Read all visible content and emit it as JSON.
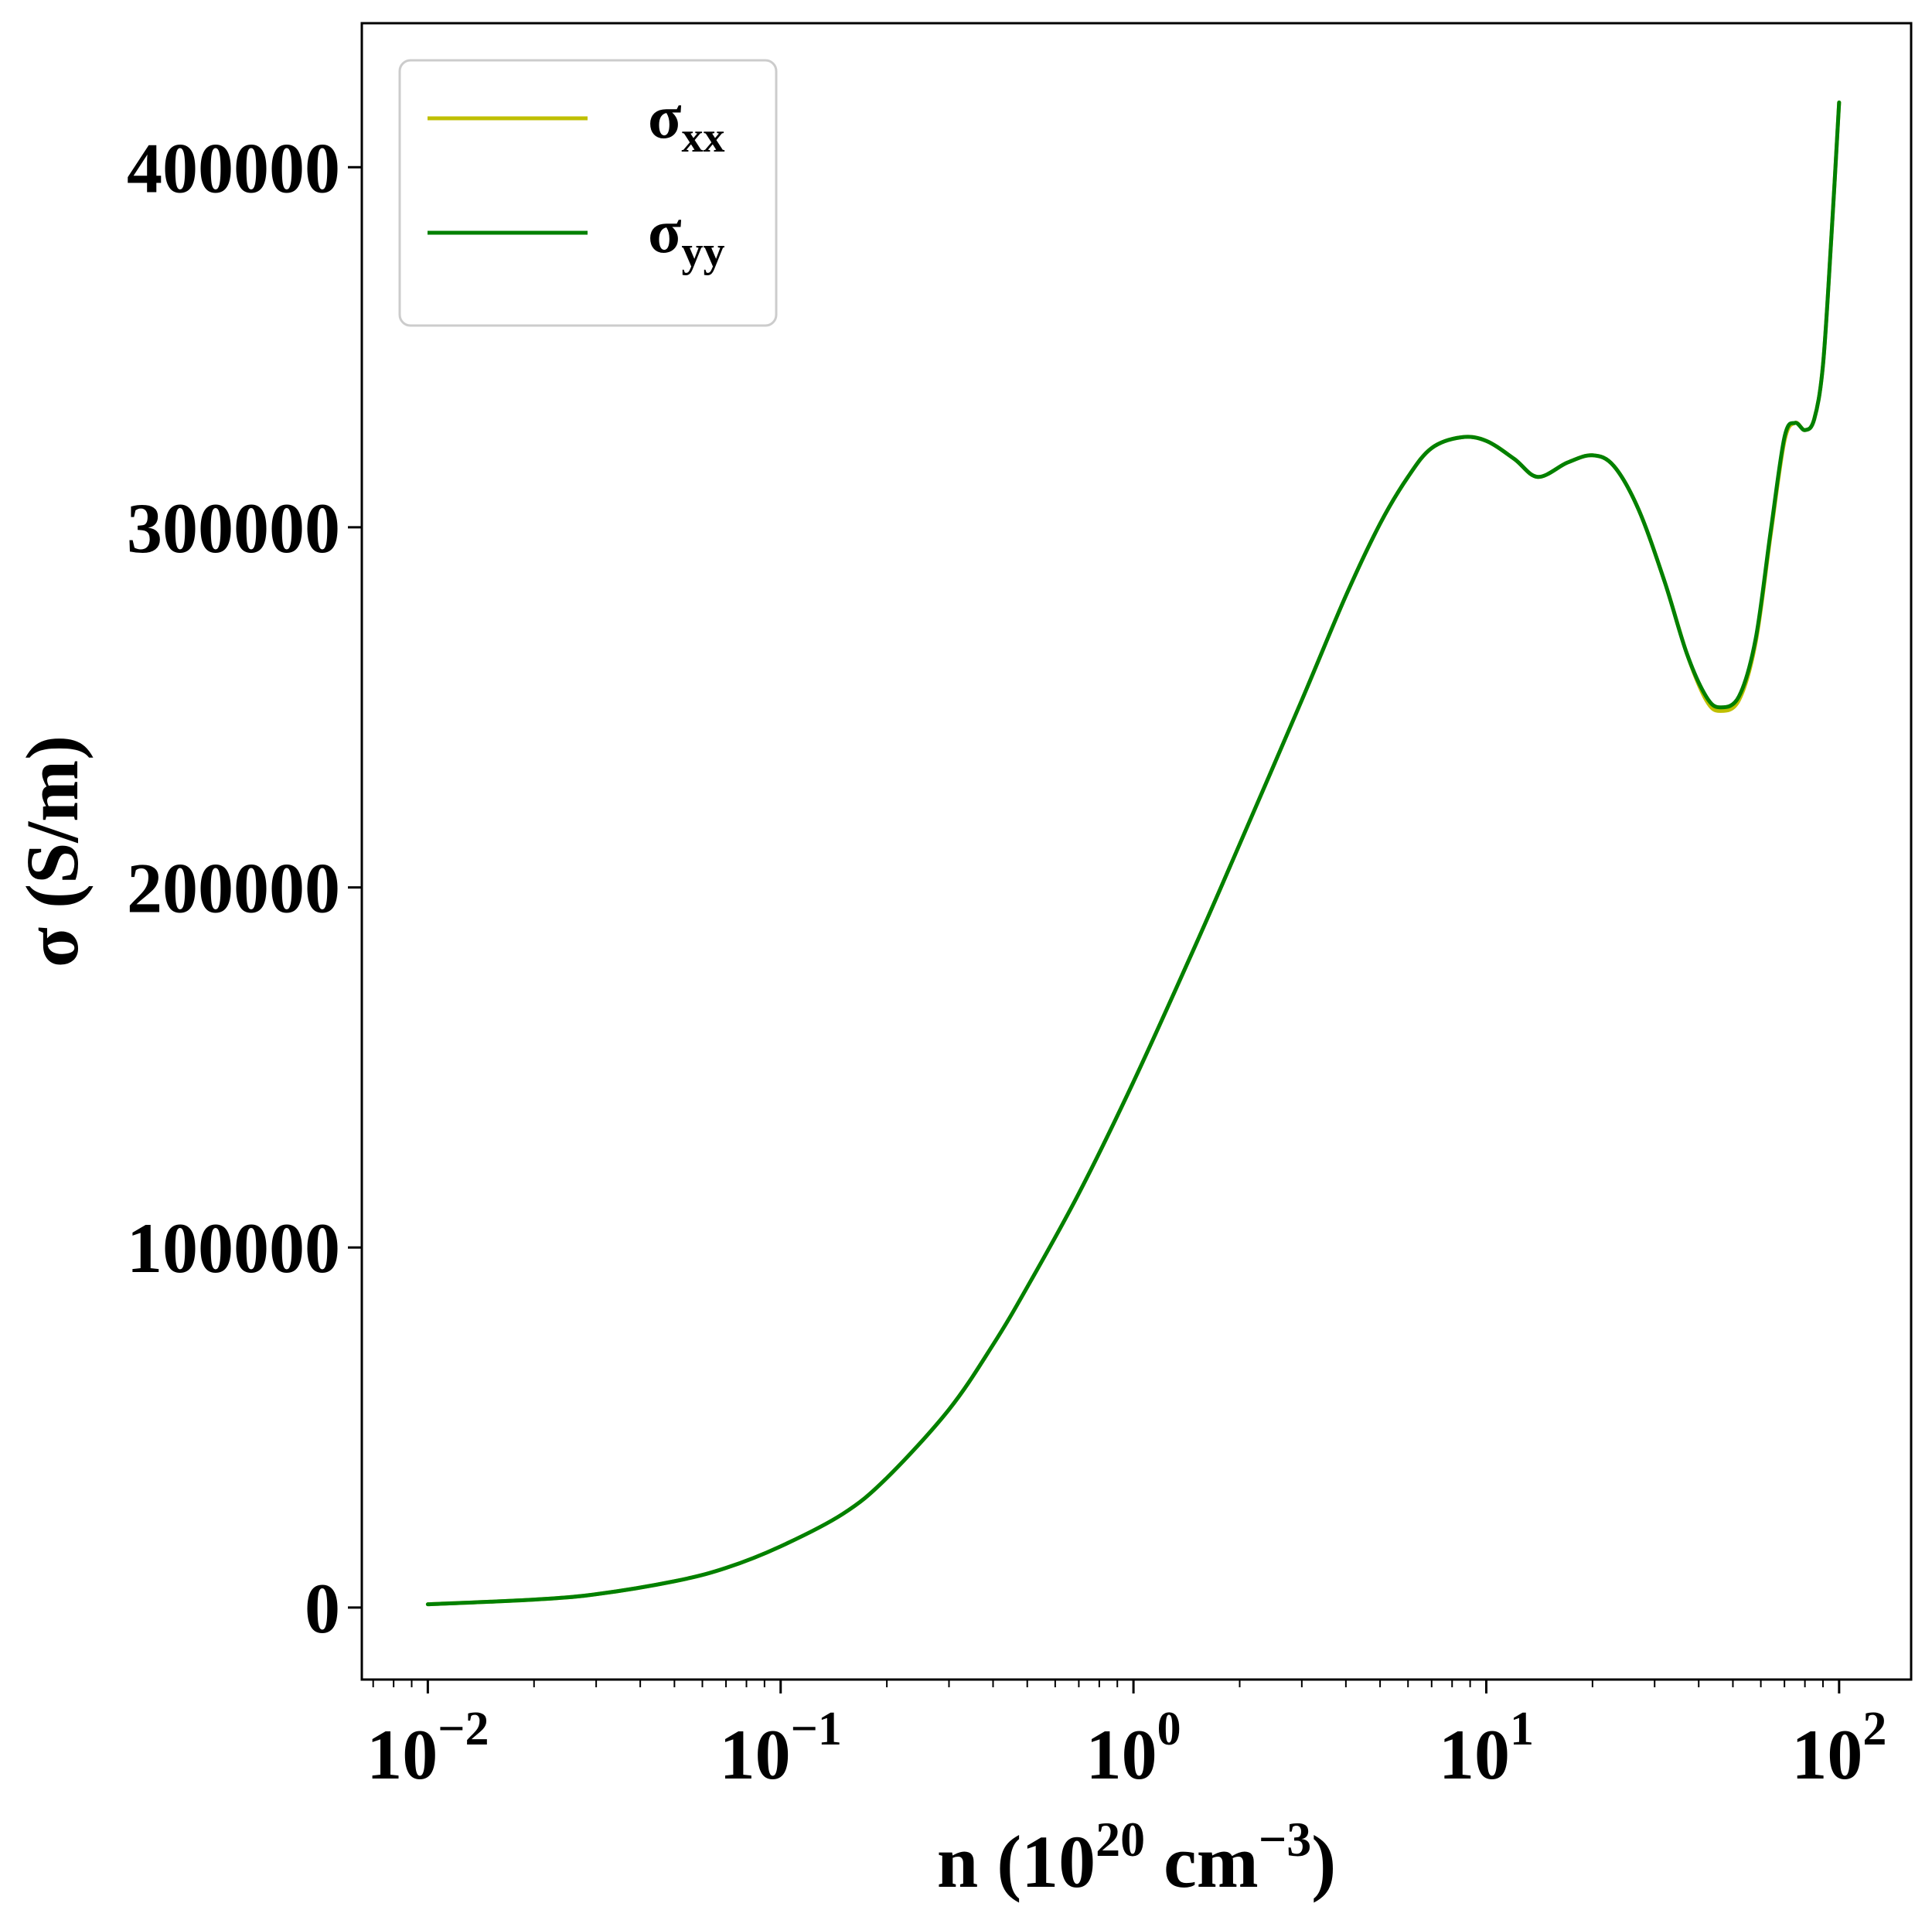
{
  "chart_data": {
    "type": "line",
    "x_scale": "log",
    "xlim": [
      0.0065,
      160
    ],
    "ylim": [
      -20000,
      440000
    ],
    "xlabel": {
      "base": "n (10",
      "sup1": "20",
      "mid": " cm",
      "sup2": "−3",
      "end": ")"
    },
    "ylabel": "σ (S/m)",
    "x_ticks": [
      {
        "value": 0.01,
        "base": "10",
        "exp": "−2"
      },
      {
        "value": 0.1,
        "base": "10",
        "exp": "−1"
      },
      {
        "value": 1,
        "base": "10",
        "exp": "0"
      },
      {
        "value": 10,
        "base": "10",
        "exp": "1"
      },
      {
        "value": 100,
        "base": "10",
        "exp": "2"
      }
    ],
    "y_ticks": [
      {
        "value": 0,
        "label": "0"
      },
      {
        "value": 100000,
        "label": "100000"
      },
      {
        "value": 200000,
        "label": "200000"
      },
      {
        "value": 300000,
        "label": "300000"
      },
      {
        "value": 400000,
        "label": "400000"
      }
    ],
    "legend": {
      "position": "upper left",
      "framed": true
    },
    "x": [
      0.01,
      0.02,
      0.03,
      0.05,
      0.07,
      0.1,
      0.15,
      0.2,
      0.3,
      0.4,
      0.5,
      0.7,
      1.0,
      1.5,
      2.0,
      3.0,
      4.0,
      5.0,
      6.0,
      7.0,
      8.5,
      10.0,
      12.0,
      14.0,
      17.0,
      20.0,
      23.0,
      27.0,
      32.0,
      37.0,
      42.0,
      46.0,
      52.0,
      58.0,
      64.0,
      70.0,
      75.0,
      80.0,
      85.0,
      90.0,
      95.0,
      100.0
    ],
    "series": [
      {
        "name_base": "σ",
        "name_sub": "xx",
        "color": "#bfbf00",
        "values": [
          900,
          2200,
          3700,
          7300,
          11000,
          17000,
          26000,
          36000,
          55000,
          73000,
          89000,
          115000,
          146000,
          184000,
          212000,
          252000,
          281000,
          301000,
          314000,
          322000,
          325000,
          324000,
          319000,
          314000,
          318000,
          320000,
          317000,
          305000,
          285000,
          265000,
          252000,
          249000,
          252000,
          268000,
          298000,
          324000,
          329000,
          327000,
          330000,
          345000,
          380000,
          418000
        ]
      },
      {
        "name_base": "σ",
        "name_sub": "yy",
        "color": "#008000",
        "values": [
          900,
          2200,
          3700,
          7300,
          11000,
          17000,
          26000,
          36000,
          55000,
          73000,
          89000,
          115000,
          146000,
          184000,
          212000,
          252000,
          281000,
          301000,
          314000,
          322000,
          325000,
          324000,
          319000,
          314000,
          318000,
          320000,
          317000,
          305000,
          285000,
          265000,
          253000,
          250000,
          253000,
          269000,
          299000,
          325000,
          329000,
          327000,
          330000,
          345000,
          380000,
          418000
        ]
      }
    ]
  }
}
